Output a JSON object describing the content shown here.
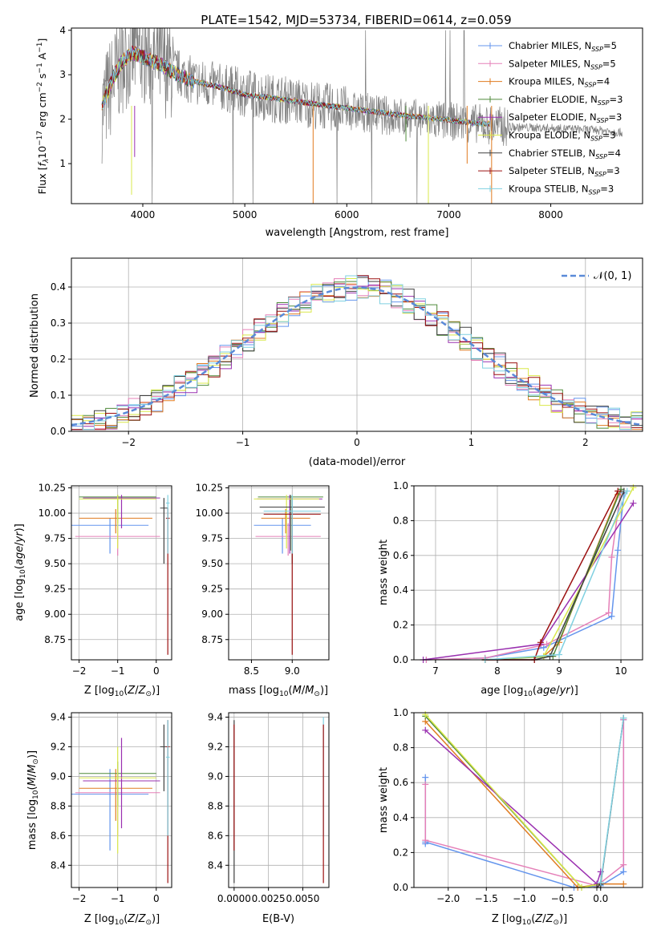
{
  "figure": {
    "title": "PLATE=1542, MJD=53734, FIBERID=0614, z=0.059",
    "colors": {
      "Chabrier MILES": "#6495ed",
      "Salpeter MILES": "#e580b8",
      "Kroupa MILES": "#e07b20",
      "Chabrier ELODIE": "#4f8a3a",
      "Salpeter ELODIE": "#9a30b0",
      "Kroupa ELODIE": "#d9e84a",
      "Chabrier STELIB": "#404040",
      "Salpeter STELIB": "#9b1010",
      "Kroupa STELIB": "#7fd0e0",
      "data": "#808080",
      "normal": "#5a8ad8"
    }
  },
  "chart_data": [
    {
      "id": "spectrum",
      "type": "line",
      "xlabel": "wavelength [Angstrom, rest frame]",
      "ylabel": "Flux [f_λ 10^-17 erg cm^-2 s^-1 A^-1]",
      "xlim": [
        3300,
        8900
      ],
      "ylim": [
        0.1,
        4.05
      ],
      "xticks": [
        4000,
        5000,
        6000,
        7000,
        8000
      ],
      "yticks": [
        1,
        2,
        3,
        4
      ],
      "legend_position": "top-right",
      "legend": [
        {
          "name": "Chabrier MILES",
          "nssp": "5"
        },
        {
          "name": "Salpeter MILES",
          "nssp": "5"
        },
        {
          "name": "Kroupa MILES",
          "nssp": "4"
        },
        {
          "name": "Chabrier ELODIE",
          "nssp": "3"
        },
        {
          "name": "Salpeter ELODIE",
          "nssp": "3"
        },
        {
          "name": "Kroupa ELODIE",
          "nssp": "3"
        },
        {
          "name": "Chabrier STELIB",
          "nssp": "4"
        },
        {
          "name": "Salpeter STELIB",
          "nssp": "3"
        },
        {
          "name": "Kroupa STELIB",
          "nssp": "3"
        }
      ],
      "data_envelope": {
        "x": [
          3600,
          3700,
          3800,
          3900,
          4000,
          4100,
          4200,
          4300,
          4500,
          4800,
          5000,
          5200,
          5500,
          6000,
          6500,
          7000,
          7300,
          7600,
          8000,
          8500,
          8700
        ],
        "y": [
          2.2,
          2.8,
          3.3,
          3.5,
          3.5,
          3.3,
          3.25,
          3.1,
          2.85,
          2.7,
          2.6,
          2.5,
          2.4,
          2.2,
          2.05,
          1.95,
          1.9,
          1.82,
          1.8,
          1.75,
          1.7
        ]
      },
      "model_curve": {
        "x": [
          3600,
          3700,
          3800,
          3900,
          4000,
          4100,
          4200,
          4300,
          4500,
          4800,
          5000,
          5200,
          5500,
          6000,
          6500,
          7000,
          7300,
          7400
        ],
        "y": [
          2.3,
          2.9,
          3.3,
          3.5,
          3.4,
          3.3,
          3.2,
          3.05,
          2.85,
          2.7,
          2.55,
          2.5,
          2.4,
          2.25,
          2.1,
          1.98,
          1.9,
          1.9
        ]
      }
    },
    {
      "id": "residuals",
      "type": "line",
      "xlabel": "(data-model)/error",
      "ylabel": "Normed distribution",
      "xlim": [
        -2.5,
        2.5
      ],
      "ylim": [
        0,
        0.48
      ],
      "xticks": [
        -2,
        -1,
        0,
        1,
        2
      ],
      "yticks": [
        0.0,
        0.1,
        0.2,
        0.3,
        0.4
      ],
      "legend_position": "top-right",
      "legend_label": "𝒩(0, 1)",
      "bin_width": 0.1
    },
    {
      "id": "age-vs-Z",
      "type": "scatter",
      "xlabel": "Z [log10(Z/Z⊙)]",
      "ylabel": "age  [log10(age/yr)]",
      "xlim": [
        -2.2,
        0.4
      ],
      "ylim": [
        8.55,
        10.27
      ],
      "xticks": [
        -2,
        -1,
        0
      ],
      "yticks": [
        8.75,
        9.0,
        9.25,
        9.5,
        9.75,
        10.0,
        10.25
      ],
      "points": [
        {
          "model": "Chabrier MILES",
          "x": -1.2,
          "y": 9.88,
          "xerr": 1.0,
          "ylo": 9.6,
          "yhi": 9.95
        },
        {
          "model": "Salpeter MILES",
          "x": -1.0,
          "y": 9.77,
          "xerr": 1.1,
          "ylo": 9.58,
          "yhi": 9.9
        },
        {
          "model": "Kroupa MILES",
          "x": -1.05,
          "y": 9.95,
          "xerr": 0.95,
          "ylo": 9.8,
          "yhi": 10.04
        },
        {
          "model": "Chabrier ELODIE",
          "x": -1.0,
          "y": 10.16,
          "xerr": 1.0,
          "ylo": 9.9,
          "yhi": 10.18
        },
        {
          "model": "Salpeter ELODIE",
          "x": -0.9,
          "y": 10.15,
          "xerr": 1.0,
          "ylo": 9.85,
          "yhi": 10.18
        },
        {
          "model": "Kroupa ELODIE",
          "x": -1.0,
          "y": 10.14,
          "xerr": 1.0,
          "ylo": 9.65,
          "yhi": 10.18
        },
        {
          "model": "Chabrier STELIB",
          "x": 0.2,
          "y": 10.05,
          "xerr": 0.1,
          "ylo": 9.5,
          "yhi": 10.15
        },
        {
          "model": "Salpeter STELIB",
          "x": 0.3,
          "y": 9.95,
          "xerr": 0.05,
          "ylo": 8.6,
          "yhi": 10.05
        },
        {
          "model": "Kroupa STELIB",
          "x": 0.3,
          "y": 10.1,
          "xerr": 0.05,
          "ylo": 9.6,
          "yhi": 10.18
        }
      ]
    },
    {
      "id": "age-vs-mass",
      "type": "scatter",
      "xlabel": "mass [log10(M/M⊙)]",
      "ylabel": "",
      "xlim": [
        8.22,
        9.45
      ],
      "ylim": [
        8.55,
        10.27
      ],
      "xticks": [
        8.5,
        9.0
      ],
      "yticks": [
        8.75,
        9.0,
        9.25,
        9.5,
        9.75,
        10.0,
        10.25
      ],
      "points": [
        {
          "model": "Chabrier MILES",
          "x": 8.88,
          "y": 9.88,
          "xerr": 0.35,
          "ylo": 9.6,
          "yhi": 9.95
        },
        {
          "model": "Salpeter MILES",
          "x": 8.95,
          "y": 9.77,
          "xerr": 0.4,
          "ylo": 9.58,
          "yhi": 9.9
        },
        {
          "model": "Kroupa MILES",
          "x": 8.92,
          "y": 9.95,
          "xerr": 0.3,
          "ylo": 9.8,
          "yhi": 10.04
        },
        {
          "model": "Chabrier ELODIE",
          "x": 8.98,
          "y": 10.16,
          "xerr": 0.4,
          "ylo": 9.63,
          "yhi": 10.18
        },
        {
          "model": "Salpeter ELODIE",
          "x": 8.97,
          "y": 10.14,
          "xerr": 0.4,
          "ylo": 9.6,
          "yhi": 10.18
        },
        {
          "model": "Kroupa ELODIE",
          "x": 8.93,
          "y": 10.14,
          "xerr": 0.4,
          "ylo": 9.65,
          "yhi": 10.18
        },
        {
          "model": "Chabrier STELIB",
          "x": 9.0,
          "y": 10.06,
          "xerr": 0.4,
          "ylo": 9.5,
          "yhi": 10.15
        },
        {
          "model": "Salpeter STELIB",
          "x": 9.0,
          "y": 9.99,
          "xerr": 0.35,
          "ylo": 8.6,
          "yhi": 10.05
        },
        {
          "model": "Kroupa STELIB",
          "x": 9.0,
          "y": 10.02,
          "xerr": 0.35,
          "ylo": 9.6,
          "yhi": 10.18
        }
      ]
    },
    {
      "id": "weight-vs-age",
      "type": "line",
      "xlabel": "age  [log10(age/yr)]",
      "ylabel": "mass weight",
      "xlim": [
        6.65,
        10.35
      ],
      "ylim": [
        0,
        1.0
      ],
      "xticks": [
        7,
        8,
        9,
        10
      ],
      "yticks": [
        0.0,
        0.2,
        0.4,
        0.6,
        0.8,
        1.0
      ],
      "series": [
        {
          "model": "Chabrier MILES",
          "x": [
            6.85,
            7.8,
            8.75,
            9.85,
            9.95,
            10.05
          ],
          "y": [
            0.0,
            0.01,
            0.07,
            0.25,
            0.63,
            0.96
          ]
        },
        {
          "model": "Salpeter MILES",
          "x": [
            6.85,
            7.8,
            8.8,
            9.8,
            9.85,
            10.0
          ],
          "y": [
            0.0,
            0.01,
            0.09,
            0.27,
            0.59,
            0.98
          ]
        },
        {
          "model": "Kroupa MILES",
          "x": [
            7.8,
            8.75,
            9.0,
            9.95
          ],
          "y": [
            0.0,
            0.02,
            0.1,
            0.95
          ]
        },
        {
          "model": "Chabrier ELODIE",
          "x": [
            7.8,
            8.9,
            10.0
          ],
          "y": [
            0.0,
            0.02,
            0.98
          ]
        },
        {
          "model": "Salpeter ELODIE",
          "x": [
            6.8,
            8.7,
            10.2
          ],
          "y": [
            0.0,
            0.09,
            0.9
          ]
        },
        {
          "model": "Kroupa ELODIE",
          "x": [
            7.8,
            8.75,
            10.2
          ],
          "y": [
            0.0,
            0.02,
            0.99
          ]
        },
        {
          "model": "Chabrier STELIB",
          "x": [
            7.8,
            8.6,
            8.85,
            10.05
          ],
          "y": [
            0.0,
            0.0,
            0.02,
            0.97
          ]
        },
        {
          "model": "Salpeter STELIB",
          "x": [
            7.8,
            8.6,
            8.7,
            9.95
          ],
          "y": [
            0.0,
            0.0,
            0.1,
            0.97
          ]
        },
        {
          "model": "Kroupa STELIB",
          "x": [
            7.8,
            9.0,
            10.1
          ],
          "y": [
            0.0,
            0.03,
            0.97
          ]
        }
      ]
    },
    {
      "id": "mass-vs-Z",
      "type": "scatter",
      "xlabel": "Z [log10(Z/Z⊙)]",
      "ylabel": "mass [log10(M/M⊙)]",
      "xlim": [
        -2.2,
        0.4
      ],
      "ylim": [
        8.25,
        9.43
      ],
      "xticks": [
        -2,
        -1,
        0
      ],
      "yticks": [
        8.4,
        8.6,
        8.8,
        9.0,
        9.2,
        9.4
      ],
      "points": [
        {
          "model": "Chabrier MILES",
          "x": -1.2,
          "y": 8.88,
          "xerr": 1.0,
          "ylo": 8.5,
          "yhi": 9.05
        },
        {
          "model": "Salpeter MILES",
          "x": -1.0,
          "y": 8.89,
          "xerr": 1.1,
          "ylo": 8.6,
          "yhi": 9.05
        },
        {
          "model": "Kroupa MILES",
          "x": -1.05,
          "y": 8.92,
          "xerr": 0.95,
          "ylo": 8.7,
          "yhi": 9.05
        },
        {
          "model": "Chabrier ELODIE",
          "x": -1.0,
          "y": 9.02,
          "xerr": 1.0,
          "ylo": 8.8,
          "yhi": 9.1
        },
        {
          "model": "Salpeter ELODIE",
          "x": -0.9,
          "y": 8.97,
          "xerr": 1.0,
          "ylo": 8.65,
          "yhi": 9.26
        },
        {
          "model": "Kroupa ELODIE",
          "x": -1.0,
          "y": 8.99,
          "xerr": 1.0,
          "ylo": 8.48,
          "yhi": 9.2
        },
        {
          "model": "Chabrier STELIB",
          "x": 0.2,
          "y": 9.2,
          "xerr": 0.1,
          "ylo": 8.9,
          "yhi": 9.35
        },
        {
          "model": "Salpeter STELIB",
          "x": 0.3,
          "y": 9.2,
          "xerr": 0.05,
          "ylo": 8.28,
          "yhi": 9.38
        },
        {
          "model": "Kroupa STELIB",
          "x": 0.3,
          "y": 9.13,
          "xerr": 0.05,
          "ylo": 8.6,
          "yhi": 9.38
        }
      ]
    },
    {
      "id": "mass-vs-EBV",
      "type": "scatter",
      "xlabel": "E(B-V)",
      "ylabel": "",
      "xlim": [
        -0.0004,
        0.0069
      ],
      "ylim": [
        8.25,
        9.43
      ],
      "xticks": [
        0.0,
        0.0025,
        0.005
      ],
      "xtick_labels": [
        "0.0000",
        "0.0025",
        "0.0050"
      ],
      "yticks": [
        8.4,
        8.6,
        8.8,
        9.0,
        9.2,
        9.4
      ],
      "points": [
        {
          "model": "Chabrier STELIB",
          "x": 0.0,
          "y": 8.9,
          "ylo": 8.28,
          "yhi": 9.38
        },
        {
          "model": "Salpeter STELIB",
          "x": 0.0,
          "y": 8.95,
          "ylo": 8.5,
          "yhi": 9.35
        },
        {
          "model": "Kroupa STELIB",
          "x": 0.0065,
          "y": 9.1,
          "ylo": 8.6,
          "yhi": 9.4
        },
        {
          "model": "Salpeter STELIB",
          "x": 0.0065,
          "y": 9.0,
          "ylo": 8.28,
          "yhi": 9.35
        }
      ]
    },
    {
      "id": "weight-vs-Z",
      "type": "line",
      "xlabel": "Z [log10(Z/Z⊙)]",
      "ylabel": "mass weight",
      "xlim": [
        -2.45,
        0.55
      ],
      "ylim": [
        0,
        1.0
      ],
      "xticks": [
        -2.0,
        -1.5,
        -1.0,
        -0.5,
        0.0
      ],
      "yticks": [
        0.0,
        0.2,
        0.4,
        0.6,
        0.8,
        1.0
      ],
      "series": [
        {
          "model": "Chabrier MILES",
          "x": [
            -2.3,
            -2.3,
            -2.3,
            -0.35,
            0.0,
            0.3,
            0.3
          ],
          "y": [
            0.63,
            0.25,
            0.26,
            0.0,
            0.01,
            0.09,
            0.96
          ]
        },
        {
          "model": "Salpeter MILES",
          "x": [
            -2.3,
            -2.3,
            -0.05,
            0.3,
            0.3
          ],
          "y": [
            0.59,
            0.27,
            0.01,
            0.13,
            0.96
          ]
        },
        {
          "model": "Kroupa MILES",
          "x": [
            -2.3,
            -0.3,
            0.0,
            0.3
          ],
          "y": [
            0.95,
            0.0,
            0.02,
            0.02
          ]
        },
        {
          "model": "Chabrier ELODIE",
          "x": [
            -2.3,
            -0.25,
            0.0
          ],
          "y": [
            0.98,
            0.0,
            0.02
          ]
        },
        {
          "model": "Salpeter ELODIE",
          "x": [
            -2.3,
            -0.05,
            0.0
          ],
          "y": [
            0.9,
            0.02,
            0.09
          ]
        },
        {
          "model": "Kroupa ELODIE",
          "x": [
            -2.3,
            -0.25,
            0.0
          ],
          "y": [
            0.99,
            0.0,
            0.02
          ]
        },
        {
          "model": "Chabrier STELIB",
          "x": [
            -0.05,
            0.0,
            0.3
          ],
          "y": [
            0.0,
            0.02,
            0.97
          ]
        },
        {
          "model": "Kroupa STELIB",
          "x": [
            0.0,
            0.3
          ],
          "y": [
            0.03,
            0.97
          ]
        }
      ]
    }
  ]
}
